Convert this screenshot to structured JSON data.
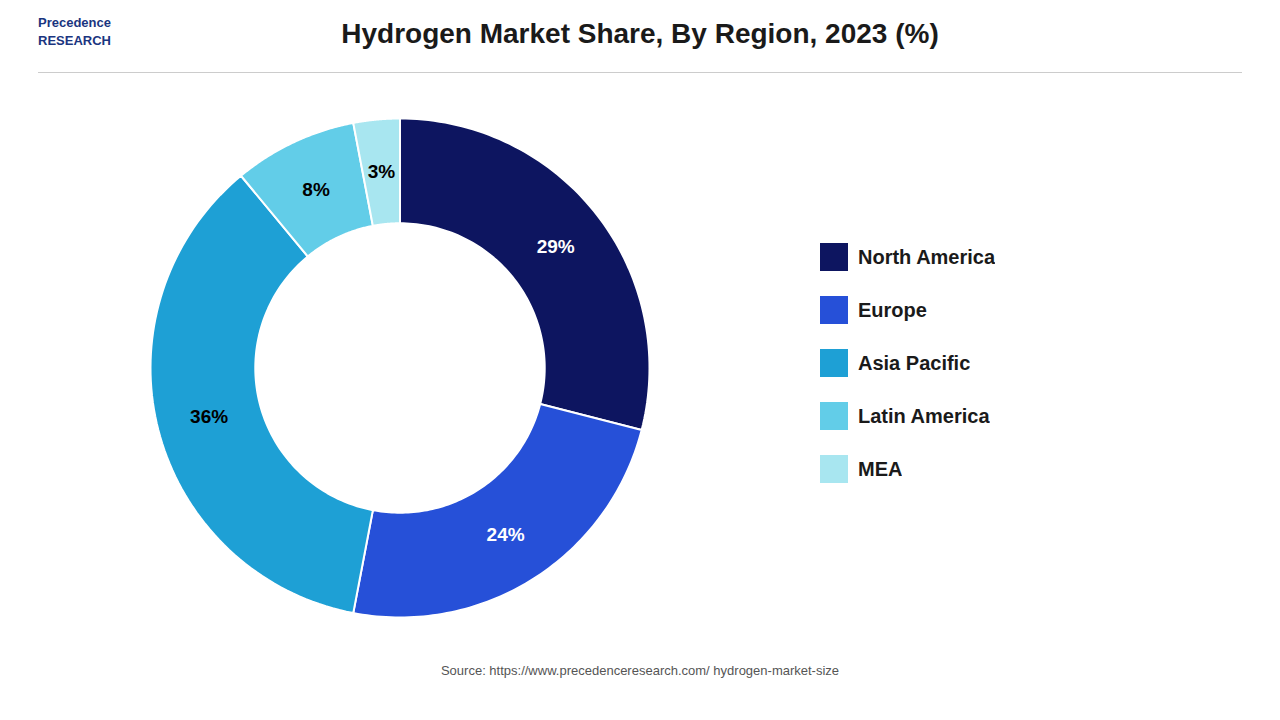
{
  "chart_data": {
    "type": "donut",
    "title": "Hydrogen Market Share, By Region, 2023 (%)",
    "categories": [
      "North America",
      "Europe",
      "Asia Pacific",
      "Latin America",
      "MEA"
    ],
    "values": [
      29,
      24,
      36,
      8,
      3
    ],
    "value_labels": [
      "29%",
      "24%",
      "36%",
      "8%",
      "3%"
    ],
    "colors": [
      "#0d1560",
      "#2650d8",
      "#1ea0d5",
      "#62cde8",
      "#a8e6f0"
    ],
    "data_labels": true,
    "legend": "right",
    "caption": "Source: https://www.precedenceresearch.com/ hydrogen-market-size",
    "annotations": [
      "Precedence\nRESEARCH"
    ]
  }
}
